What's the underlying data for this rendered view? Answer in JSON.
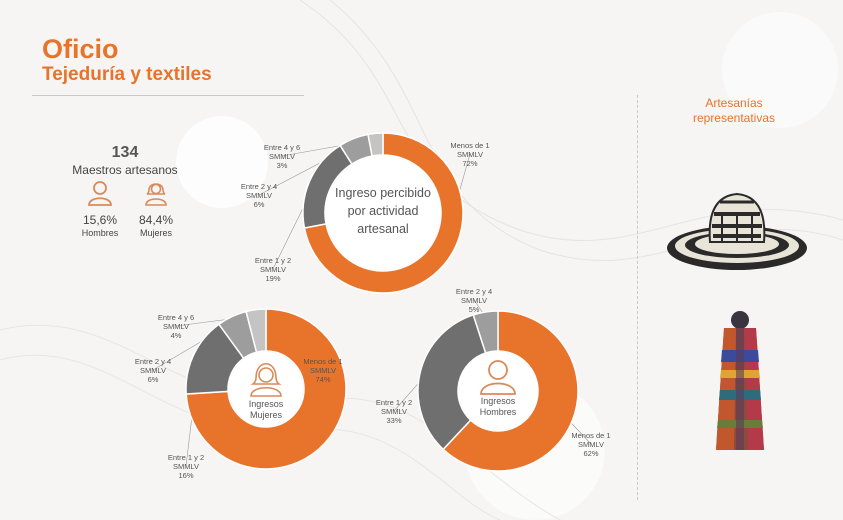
{
  "header": {
    "title": "Oficio",
    "subtitle": "Tejeduría y textiles"
  },
  "stats": {
    "count": "134",
    "count_label": "Maestros artesanos",
    "male": {
      "pct": "15,6%",
      "label": "Hombres",
      "icon": "male-person-icon"
    },
    "female": {
      "pct": "84,4%",
      "label": "Mujeres",
      "icon": "female-person-icon"
    }
  },
  "sidebar": {
    "title_line1": "Artesanías",
    "title_line2": "representativas",
    "items": [
      "sombrero-vueltiao-icon",
      "ruana-textile-icon"
    ]
  },
  "colors": {
    "accent": "#e8732a",
    "dark_gray": "#6f6f6f",
    "mid_gray": "#9d9d9d",
    "light_gray": "#c4c4c4"
  },
  "chart_data": [
    {
      "type": "pie",
      "title": "Ingreso percibido por actividad artesanal",
      "title_lines": [
        "Ingreso percibido",
        "por actividad",
        "artesanal"
      ],
      "slices": [
        {
          "label_lines": [
            "Menos de 1",
            "SMMLV",
            "72%"
          ],
          "value": 72,
          "color": "#e8732a"
        },
        {
          "label_lines": [
            "Entre 1 y 2",
            "SMMLV",
            "19%"
          ],
          "value": 19,
          "color": "#6f6f6f"
        },
        {
          "label_lines": [
            "Entre 2 y 4",
            "SMMLV",
            "6%"
          ],
          "value": 6,
          "color": "#9d9d9d"
        },
        {
          "label_lines": [
            "Entre 4 y 6",
            "SMMLV",
            "3%"
          ],
          "value": 3,
          "color": "#c4c4c4"
        }
      ]
    },
    {
      "type": "pie",
      "title": "Ingresos Mujeres",
      "title_lines": [
        "Ingresos",
        "Mujeres"
      ],
      "icon": "female-person-icon",
      "slices": [
        {
          "label_lines": [
            "Menos de 1",
            "SMMLV",
            "74%"
          ],
          "value": 74,
          "color": "#e8732a"
        },
        {
          "label_lines": [
            "Entre 1 y 2",
            "SMMLV",
            "16%"
          ],
          "value": 16,
          "color": "#6f6f6f"
        },
        {
          "label_lines": [
            "Entre 2 y 4",
            "SMMLV",
            "6%"
          ],
          "value": 6,
          "color": "#9d9d9d"
        },
        {
          "label_lines": [
            "Entre 4 y 6",
            "SMMLV",
            "4%"
          ],
          "value": 4,
          "color": "#c4c4c4"
        }
      ]
    },
    {
      "type": "pie",
      "title": "Ingresos Hombres",
      "title_lines": [
        "Ingresos",
        "Hombres"
      ],
      "icon": "male-person-icon",
      "slices": [
        {
          "label_lines": [
            "Menos de 1",
            "SMMLV",
            "62%"
          ],
          "value": 62,
          "color": "#e8732a"
        },
        {
          "label_lines": [
            "Entre 1 y 2",
            "SMMLV",
            "33%"
          ],
          "value": 33,
          "color": "#6f6f6f"
        },
        {
          "label_lines": [
            "Entre 2 y 4",
            "SMMLV",
            "5%"
          ],
          "value": 5,
          "color": "#9d9d9d"
        }
      ]
    }
  ]
}
